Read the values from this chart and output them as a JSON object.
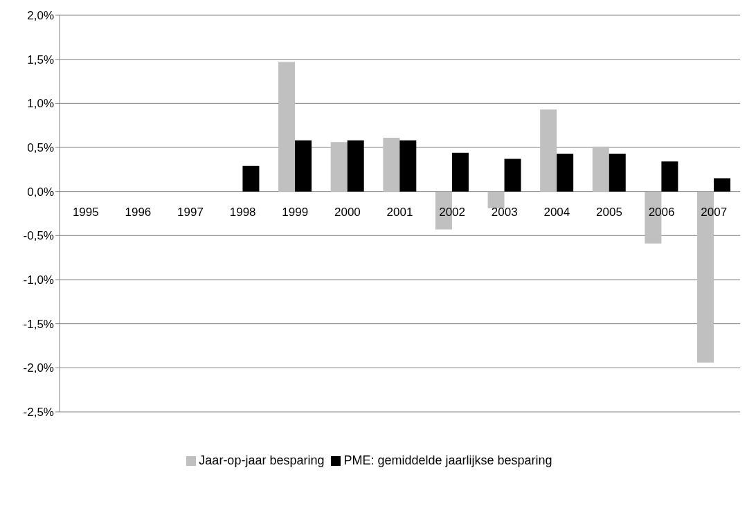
{
  "chart_data": {
    "type": "bar",
    "categories": [
      "1995",
      "1996",
      "1997",
      "1998",
      "1999",
      "2000",
      "2001",
      "2002",
      "2003",
      "2004",
      "2005",
      "2006",
      "2007"
    ],
    "series": [
      {
        "name": "Jaar-op-jaar besparing",
        "color": "#c0c0c0",
        "values": [
          null,
          null,
          null,
          null,
          1.47,
          0.56,
          0.61,
          -0.43,
          -0.19,
          0.93,
          0.51,
          -0.59,
          -1.94
        ]
      },
      {
        "name": "PME: gemiddelde jaarlijkse besparing",
        "color": "#000000",
        "values": [
          null,
          null,
          null,
          0.29,
          0.58,
          0.58,
          0.58,
          0.44,
          0.37,
          0.43,
          0.43,
          0.34,
          0.15
        ]
      }
    ],
    "ylim": [
      -2.5,
      2.0
    ],
    "yticks": [
      {
        "value": -2.5,
        "label": "-2,5%"
      },
      {
        "value": -2.0,
        "label": "-2,0%"
      },
      {
        "value": -1.5,
        "label": "-1,5%"
      },
      {
        "value": -1.0,
        "label": "-1,0%"
      },
      {
        "value": -0.5,
        "label": "-0,5%"
      },
      {
        "value": 0,
        "label": "0,0%"
      },
      {
        "value": 0.5,
        "label": "0,5%"
      },
      {
        "value": 1.0,
        "label": "1,0%"
      },
      {
        "value": 1.5,
        "label": "1,5%"
      },
      {
        "value": 2.0,
        "label": "2,0%"
      }
    ],
    "grid": "y",
    "legend": "bottom"
  }
}
